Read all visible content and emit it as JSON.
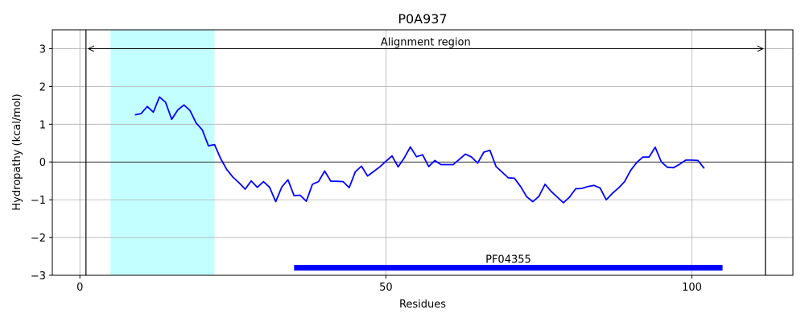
{
  "chart_data": {
    "type": "line",
    "title": "P0A937",
    "xlabel": "Residues",
    "ylabel": "Hydropathy (kcal/mol)",
    "xlim": [
      -4.5,
      116.5
    ],
    "ylim": [
      -3,
      3.5
    ],
    "xticks": [
      0,
      50,
      100
    ],
    "yticks": [
      -3,
      -2,
      -1,
      0,
      1,
      2,
      3
    ],
    "ytick_labels": [
      "−3",
      "−2",
      "−1",
      "0",
      "1",
      "2",
      "3"
    ],
    "grid": true,
    "highlight_region": {
      "x": [
        5,
        22
      ],
      "color": "#c4ffff"
    },
    "alignment_region": {
      "x": [
        1,
        112
      ],
      "label": "Alignment region",
      "y": 3
    },
    "domain": {
      "name": "PF04355",
      "x": [
        35,
        105
      ],
      "y": -2.8,
      "color": "#0000ff"
    },
    "series": [
      {
        "color": "#0000ff",
        "x": [
          9,
          10,
          11,
          12,
          13,
          14,
          15,
          16,
          17,
          18,
          19,
          20,
          21,
          22,
          23,
          24,
          25,
          26,
          27,
          28,
          29,
          30,
          31,
          32,
          33,
          34,
          35,
          36,
          37,
          38,
          39,
          40,
          41,
          42,
          43,
          44,
          45,
          46,
          47,
          48,
          49,
          50,
          51,
          52,
          53,
          54,
          55,
          56,
          57,
          58,
          59,
          60,
          61,
          62,
          63,
          64,
          65,
          66,
          67,
          68,
          69,
          70,
          71,
          72,
          73,
          74,
          75,
          76,
          77,
          78,
          79,
          80,
          81,
          82,
          83,
          84,
          85,
          86,
          87,
          88,
          89,
          90,
          91,
          92,
          93,
          94,
          95,
          96,
          97,
          98,
          99,
          100,
          101,
          102
        ],
        "y": [
          1.25,
          1.28,
          1.47,
          1.32,
          1.72,
          1.58,
          1.13,
          1.38,
          1.51,
          1.36,
          1.03,
          0.85,
          0.43,
          0.46,
          0.09,
          -0.2,
          -0.4,
          -0.55,
          -0.72,
          -0.5,
          -0.67,
          -0.52,
          -0.67,
          -1.05,
          -0.66,
          -0.47,
          -0.89,
          -0.88,
          -1.04,
          -0.59,
          -0.52,
          -0.24,
          -0.51,
          -0.51,
          -0.52,
          -0.68,
          -0.26,
          -0.11,
          -0.37,
          -0.25,
          -0.13,
          0.02,
          0.16,
          -0.13,
          0.11,
          0.4,
          0.14,
          0.19,
          -0.12,
          0.04,
          -0.07,
          -0.07,
          -0.07,
          0.07,
          0.21,
          0.13,
          -0.03,
          0.26,
          0.31,
          -0.12,
          -0.27,
          -0.42,
          -0.43,
          -0.65,
          -0.92,
          -1.05,
          -0.91,
          -0.59,
          -0.78,
          -0.93,
          -1.08,
          -0.93,
          -0.71,
          -0.7,
          -0.65,
          -0.62,
          -0.69,
          -1.0,
          -0.83,
          -0.69,
          -0.52,
          -0.22,
          -0.01,
          0.13,
          0.13,
          0.39,
          0.0,
          -0.14,
          -0.15,
          -0.06,
          0.05,
          0.05,
          0.04,
          -0.17
        ]
      }
    ]
  }
}
